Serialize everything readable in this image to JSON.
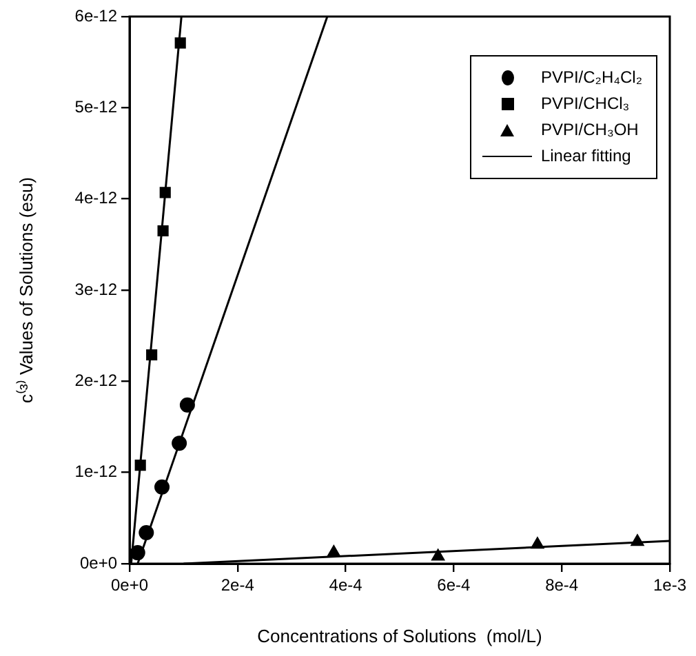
{
  "chart_data": {
    "type": "scatter",
    "xlabel": "Concentrations of Solutions  (mol/L)",
    "ylabel": "c⁽³⁾ Values of Solutions (esu)",
    "xlim": [
      0,
      0.001
    ],
    "ylim": [
      0,
      6e-12
    ],
    "xticks": [
      {
        "value": 0,
        "label": "0e+0"
      },
      {
        "value": 0.0002,
        "label": "2e-4"
      },
      {
        "value": 0.0004,
        "label": "4e-4"
      },
      {
        "value": 0.0006,
        "label": "6e-4"
      },
      {
        "value": 0.0008,
        "label": "8e-4"
      },
      {
        "value": 0.001,
        "label": "1e-3"
      }
    ],
    "yticks": [
      {
        "value": 0,
        "label": "0e+0"
      },
      {
        "value": 1e-12,
        "label": "1e-12"
      },
      {
        "value": 2e-12,
        "label": "2e-12"
      },
      {
        "value": 3e-12,
        "label": "3e-12"
      },
      {
        "value": 4e-12,
        "label": "4e-12"
      },
      {
        "value": 5e-12,
        "label": "5e-12"
      },
      {
        "value": 6e-12,
        "label": "6e-12"
      }
    ],
    "grid": false,
    "legend": "top right",
    "series": [
      {
        "name": "PVPI/C₂H₄Cl₂",
        "type": "scatter",
        "marker": "circle",
        "color": "#000000",
        "x": [
          1.5e-05,
          3.1e-05,
          6e-05,
          9.2e-05,
          0.000107
        ],
        "values": [
          1.2e-13,
          3.4e-13,
          8.4e-13,
          1.32e-12,
          1.74e-12
        ]
      },
      {
        "name": "PVPI/CHCl₃",
        "type": "scatter",
        "marker": "square",
        "color": "#000000",
        "x": [
          2e-05,
          4.1e-05,
          6.2e-05,
          6.6e-05,
          9.4e-05
        ],
        "values": [
          1.08e-12,
          2.29e-12,
          3.65e-12,
          4.07e-12,
          5.71e-12
        ]
      },
      {
        "name": "PVPI/CH₃OH",
        "type": "scatter",
        "marker": "triangle",
        "color": "#000000",
        "x": [
          0.000378,
          0.000571,
          0.000755,
          0.00094
        ],
        "values": [
          1.2e-13,
          8e-14,
          2.1e-13,
          2.4e-13
        ]
      },
      {
        "name": "Linear fitting",
        "type": "line",
        "marker": "none",
        "line_style": "solid",
        "color": "#000000",
        "x": [
          1.5e-05,
          0.000366
        ],
        "values": [
          0,
          6e-12
        ]
      },
      {
        "type": "line",
        "marker": "none",
        "line_style": "solid",
        "color": "#000000",
        "x": [
          3e-06,
          9.6e-05
        ],
        "values": [
          0,
          6e-12
        ]
      },
      {
        "type": "line",
        "marker": "none",
        "line_style": "solid",
        "color": "#000000",
        "x": [
          0.0001,
          0.001
        ],
        "values": [
          0,
          2.5e-13
        ]
      }
    ]
  }
}
